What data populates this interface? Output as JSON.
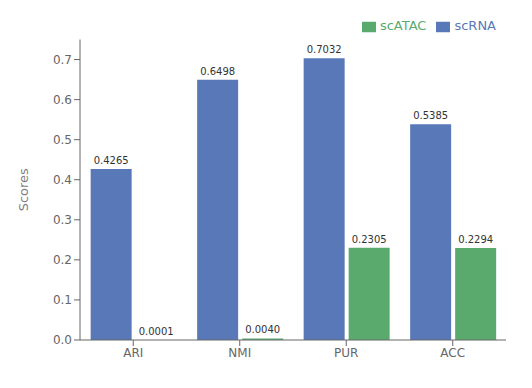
{
  "chart_data": {
    "type": "bar",
    "categories": [
      "ARI",
      "NMI",
      "PUR",
      "ACC"
    ],
    "series": [
      {
        "name": "scRNA",
        "color": "#5878b8",
        "values": [
          0.4265,
          0.6498,
          0.7032,
          0.5385
        ],
        "value_labels": [
          "0.4265",
          "0.6498",
          "0.7032",
          "0.5385"
        ]
      },
      {
        "name": "scATAC",
        "color": "#5aaa6e",
        "values": [
          0.0001,
          0.004,
          0.2305,
          0.2294
        ],
        "value_labels": [
          "0.0001",
          "0.0040",
          "0.2305",
          "0.2294"
        ]
      }
    ],
    "ylabel": "Scores",
    "ylim": [
      0.0,
      0.75
    ],
    "yticks": [
      {
        "value": 0.0,
        "label": "0.0"
      },
      {
        "value": 0.1,
        "label": "0.1"
      },
      {
        "value": 0.2,
        "label": "0.2"
      },
      {
        "value": 0.3,
        "label": "0.3"
      },
      {
        "value": 0.4,
        "label": "0.4"
      },
      {
        "value": 0.5,
        "label": "0.5"
      },
      {
        "value": 0.6,
        "label": "0.6"
      },
      {
        "value": 0.7,
        "label": "0.7"
      }
    ],
    "legend": "upper right",
    "data_labels": true,
    "grid": false
  }
}
